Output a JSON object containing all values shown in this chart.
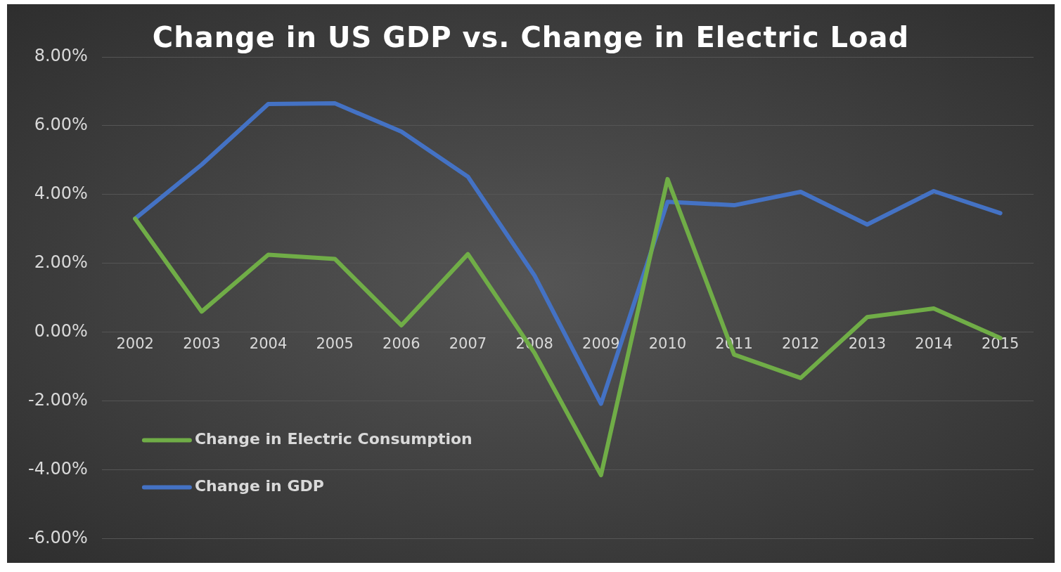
{
  "chart_data": {
    "type": "line",
    "title": "Change in US GDP vs. Change in Electric Load",
    "categories": [
      "2002",
      "2003",
      "2004",
      "2005",
      "2006",
      "2007",
      "2008",
      "2009",
      "2010",
      "2011",
      "2012",
      "2013",
      "2014",
      "2015"
    ],
    "series": [
      {
        "name": "Change in Electric Consumption",
        "color": "#70ad47",
        "values": [
          3.3,
          0.6,
          2.25,
          2.13,
          0.2,
          2.27,
          -0.6,
          -4.15,
          4.45,
          -0.65,
          -1.33,
          0.44,
          0.69,
          -0.17
        ]
      },
      {
        "name": "Change in GDP",
        "color": "#4472c4",
        "values": [
          3.3,
          4.87,
          6.63,
          6.65,
          5.83,
          4.52,
          1.65,
          -2.08,
          3.79,
          3.69,
          4.08,
          3.13,
          4.1,
          3.46
        ]
      }
    ],
    "ylim": [
      -6,
      8
    ],
    "yticks": [
      {
        "value": -6,
        "label": "-6.00%"
      },
      {
        "value": -4,
        "label": "-4.00%"
      },
      {
        "value": -2,
        "label": "-2.00%"
      },
      {
        "value": 0,
        "label": "0.00%"
      },
      {
        "value": 2,
        "label": "2.00%"
      },
      {
        "value": 4,
        "label": "4.00%"
      },
      {
        "value": 6,
        "label": "6.00%"
      },
      {
        "value": 8,
        "label": "8.00%"
      }
    ],
    "grid": "y",
    "legend": "bottom left",
    "marker": "none",
    "line_style": "solid"
  }
}
